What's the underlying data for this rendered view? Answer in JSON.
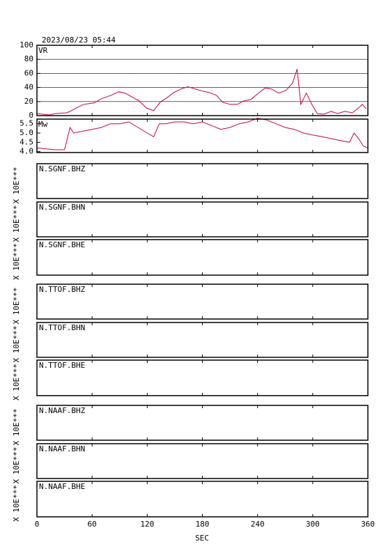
{
  "chart_data": [
    {
      "type": "line",
      "title": "2023/08/23 05:44",
      "x": [
        0,
        13,
        20,
        32,
        36,
        43,
        51,
        62,
        70,
        81,
        89,
        96,
        104,
        111,
        119,
        127,
        134,
        142,
        149,
        157,
        164,
        172,
        180,
        187,
        195,
        202,
        210,
        218,
        225,
        233,
        240,
        248,
        255,
        263,
        271,
        278,
        283,
        287,
        293,
        299,
        305,
        312,
        320,
        327,
        335,
        343,
        350,
        354,
        358
      ],
      "series": [
        {
          "name": "VR",
          "color": "#c8003c",
          "values": [
            3,
            1,
            3,
            4,
            6,
            11,
            16,
            18,
            24,
            29,
            34,
            32,
            26,
            21,
            11,
            7,
            19,
            26,
            33,
            38,
            41,
            38,
            35,
            33,
            29,
            19,
            16,
            16,
            21,
            23,
            31,
            39,
            38,
            32,
            36,
            46,
            66,
            16,
            32,
            16,
            3,
            2,
            6,
            3,
            6,
            4,
            11,
            16,
            10
          ]
        }
      ],
      "ylim": [
        0,
        100
      ],
      "yticks": [
        0,
        20,
        40,
        60,
        80,
        100
      ],
      "grid": true
    },
    {
      "type": "line",
      "x": [
        0,
        10,
        20,
        30,
        36,
        40,
        50,
        60,
        70,
        80,
        90,
        100,
        110,
        120,
        127,
        133,
        140,
        150,
        160,
        170,
        180,
        190,
        200,
        210,
        220,
        230,
        240,
        250,
        260,
        270,
        280,
        290,
        300,
        310,
        320,
        330,
        340,
        345,
        350,
        355,
        360
      ],
      "series": [
        {
          "name": "Mw",
          "color": "#c8003c",
          "values": [
            4.2,
            4.15,
            4.1,
            4.1,
            5.3,
            5.0,
            5.1,
            5.2,
            5.3,
            5.5,
            5.5,
            5.6,
            5.3,
            5.0,
            4.8,
            5.5,
            5.5,
            5.6,
            5.6,
            5.5,
            5.6,
            5.4,
            5.2,
            5.3,
            5.5,
            5.6,
            5.8,
            5.7,
            5.5,
            5.3,
            5.2,
            5.0,
            4.9,
            4.8,
            4.7,
            4.6,
            4.5,
            5.0,
            4.7,
            4.3,
            4.2
          ]
        }
      ],
      "ylim": [
        3.95,
        5.75
      ],
      "yticks": [
        {
          "value": 4,
          "label": "4.0"
        },
        {
          "value": 4.5,
          "label": "4.5"
        },
        {
          "value": 5,
          "label": "5.0"
        },
        {
          "value": 5.5,
          "label": "5.5"
        }
      ]
    },
    {
      "type": "waveform",
      "title": "N.SGNF.BHZ",
      "ylabel": "X 10E***"
    },
    {
      "type": "waveform",
      "title": "N.SGNF.BHN",
      "ylabel": "X 10E***"
    },
    {
      "type": "waveform",
      "title": "N.SGNF.BHE",
      "ylabel": "X 10E***"
    },
    {
      "type": "waveform",
      "title": "N.TTOF.BHZ",
      "ylabel": "X 10E***"
    },
    {
      "type": "waveform",
      "title": "N.TTOF.BHN",
      "ylabel": "X 10E***"
    },
    {
      "type": "waveform",
      "title": "N.TTOF.BHE",
      "ylabel": "X 10E***"
    },
    {
      "type": "waveform",
      "title": "N.NAAF.BHZ",
      "ylabel": "X 10E***"
    },
    {
      "type": "waveform",
      "title": "N.NAAF.BHN",
      "ylabel": "X 10E***"
    },
    {
      "type": "waveform",
      "title": "N.NAAF.BHE",
      "ylabel": "X 10E***",
      "xlabel": "SEC",
      "xlim": [
        0,
        360
      ],
      "xticks": [
        0,
        60,
        120,
        180,
        240,
        300,
        360
      ]
    }
  ]
}
